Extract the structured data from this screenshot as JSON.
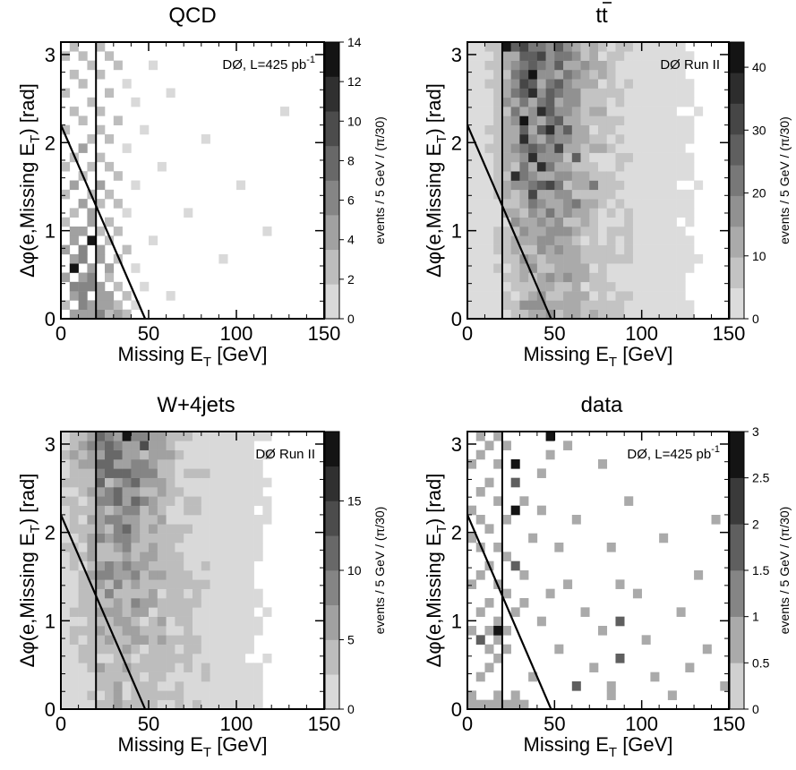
{
  "chart_data": [
    {
      "type": "heatmap",
      "title": "QCD",
      "annotation": "DØ, L=425 pb",
      "annotation_sup": "-1",
      "xlabel": "Missing E",
      "xlabel_sub": "T",
      "xlabel_unit": " [GeV]",
      "ylabel": "Δφ(e,Missing E",
      "ylabel_sub": "T",
      "ylabel_unit": ") [rad]",
      "colorbar_label": "events / 5 GeV / (π/30)",
      "xlim": [
        0,
        150
      ],
      "ylim": [
        0,
        3.1416
      ],
      "xticks": [
        0,
        50,
        100,
        150
      ],
      "yticks": [
        0,
        1,
        2,
        3
      ],
      "colorbar_ticks": [
        0,
        2,
        4,
        6,
        8,
        10,
        12,
        14
      ],
      "colorbar_max": 14,
      "colorbar_levels": 8,
      "cut_vertical_x": 20,
      "cut_line": [
        [
          0,
          2.2
        ],
        [
          48,
          0
        ]
      ],
      "bins_x": 30,
      "bins_y": 30,
      "cells": [
        [
          0,
          1,
          3
        ],
        [
          0,
          4,
          4
        ],
        [
          0,
          7,
          4
        ],
        [
          0,
          10,
          3
        ],
        [
          0,
          13,
          3
        ],
        [
          0,
          16,
          3
        ],
        [
          0,
          20,
          3
        ],
        [
          0,
          24,
          2
        ],
        [
          0,
          28,
          2
        ],
        [
          1,
          0,
          4
        ],
        [
          1,
          2,
          5
        ],
        [
          1,
          3,
          6
        ],
        [
          1,
          5,
          14
        ],
        [
          1,
          6,
          5
        ],
        [
          1,
          8,
          4
        ],
        [
          1,
          9,
          4
        ],
        [
          1,
          11,
          3
        ],
        [
          1,
          14,
          4
        ],
        [
          1,
          17,
          3
        ],
        [
          1,
          22,
          2
        ],
        [
          1,
          26,
          3
        ],
        [
          1,
          29,
          2
        ],
        [
          2,
          0,
          5
        ],
        [
          2,
          1,
          6
        ],
        [
          2,
          2,
          7
        ],
        [
          2,
          3,
          6
        ],
        [
          2,
          4,
          5
        ],
        [
          2,
          6,
          7
        ],
        [
          2,
          7,
          6
        ],
        [
          2,
          9,
          5
        ],
        [
          2,
          12,
          4
        ],
        [
          2,
          15,
          3
        ],
        [
          2,
          18,
          4
        ],
        [
          2,
          21,
          3
        ],
        [
          2,
          25,
          3
        ],
        [
          2,
          28,
          2
        ],
        [
          3,
          0,
          4
        ],
        [
          3,
          1,
          5
        ],
        [
          3,
          3,
          6
        ],
        [
          3,
          4,
          7
        ],
        [
          3,
          5,
          5
        ],
        [
          3,
          8,
          14
        ],
        [
          3,
          10,
          4
        ],
        [
          3,
          11,
          5
        ],
        [
          3,
          13,
          3
        ],
        [
          3,
          16,
          3
        ],
        [
          3,
          19,
          2
        ],
        [
          3,
          23,
          3
        ],
        [
          3,
          27,
          2
        ],
        [
          4,
          0,
          6
        ],
        [
          4,
          1,
          5
        ],
        [
          4,
          2,
          4
        ],
        [
          4,
          3,
          5
        ],
        [
          4,
          6,
          4
        ],
        [
          4,
          7,
          5
        ],
        [
          4,
          9,
          3
        ],
        [
          4,
          12,
          3
        ],
        [
          4,
          14,
          4
        ],
        [
          4,
          17,
          2
        ],
        [
          4,
          20,
          3
        ],
        [
          4,
          22,
          2
        ],
        [
          4,
          26,
          3
        ],
        [
          4,
          29,
          2
        ],
        [
          5,
          0,
          3
        ],
        [
          5,
          1,
          4
        ],
        [
          5,
          2,
          5
        ],
        [
          5,
          4,
          3
        ],
        [
          5,
          5,
          4
        ],
        [
          5,
          8,
          3
        ],
        [
          5,
          10,
          3
        ],
        [
          5,
          13,
          2
        ],
        [
          5,
          16,
          2
        ],
        [
          5,
          19,
          2
        ],
        [
          5,
          24,
          2
        ],
        [
          5,
          28,
          3
        ],
        [
          6,
          0,
          4
        ],
        [
          6,
          1,
          3
        ],
        [
          6,
          3,
          3
        ],
        [
          6,
          6,
          2
        ],
        [
          6,
          9,
          2
        ],
        [
          6,
          12,
          2
        ],
        [
          6,
          15,
          2
        ],
        [
          6,
          21,
          2
        ],
        [
          6,
          27,
          2
        ],
        [
          7,
          0,
          2
        ],
        [
          7,
          2,
          2
        ],
        [
          7,
          7,
          2
        ],
        [
          7,
          11,
          1
        ],
        [
          7,
          18,
          1
        ],
        [
          7,
          25,
          1
        ],
        [
          8,
          1,
          1
        ],
        [
          8,
          5,
          1
        ],
        [
          8,
          14,
          1
        ],
        [
          8,
          23,
          1
        ],
        [
          9,
          3,
          1
        ],
        [
          9,
          20,
          1
        ],
        [
          10,
          8,
          1
        ],
        [
          10,
          27,
          1
        ],
        [
          11,
          16,
          1
        ],
        [
          12,
          2,
          1
        ],
        [
          12,
          24,
          1
        ],
        [
          14,
          11,
          1
        ],
        [
          16,
          19,
          1
        ],
        [
          18,
          6,
          1
        ],
        [
          20,
          14,
          1
        ],
        [
          23,
          9,
          1
        ],
        [
          25,
          22,
          1
        ]
      ]
    },
    {
      "type": "heatmap",
      "title": "tt",
      "annotation": "DØ Run II",
      "annotation_sup": "",
      "xlabel": "Missing E",
      "xlabel_sub": "T",
      "xlabel_unit": " [GeV]",
      "ylabel": "Δφ(e,Missing E",
      "ylabel_sub": "T",
      "ylabel_unit": ") [rad]",
      "colorbar_label": "events / 5 GeV / (π/30)",
      "xlim": [
        0,
        150
      ],
      "ylim": [
        0,
        3.1416
      ],
      "xticks": [
        0,
        50,
        100,
        150
      ],
      "yticks": [
        0,
        1,
        2,
        3
      ],
      "colorbar_ticks": [
        0,
        10,
        20,
        30,
        40
      ],
      "colorbar_max": 44,
      "colorbar_levels": 9,
      "cut_vertical_x": 20,
      "cut_line": [
        [
          0,
          2.2
        ],
        [
          48,
          0
        ]
      ],
      "hotspots": [
        [
          4,
          29,
          42
        ],
        [
          7,
          26,
          41
        ],
        [
          7,
          24,
          39
        ],
        [
          6,
          21,
          40
        ],
        [
          8,
          22,
          38
        ],
        [
          9,
          20,
          37
        ],
        [
          6,
          19,
          36
        ],
        [
          7,
          17,
          38
        ],
        [
          8,
          16,
          39
        ],
        [
          5,
          15,
          35
        ],
        [
          9,
          14,
          34
        ],
        [
          7,
          13,
          31
        ],
        [
          10,
          18,
          30
        ],
        [
          11,
          20,
          29
        ],
        [
          6,
          25,
          33
        ],
        [
          8,
          28,
          30
        ],
        [
          12,
          17,
          27
        ],
        [
          12,
          12,
          24
        ],
        [
          9,
          11,
          22
        ],
        [
          14,
          14,
          21
        ],
        [
          11,
          9,
          18
        ]
      ]
    },
    {
      "type": "heatmap",
      "title": "W+4jets",
      "annotation": "DØ Run II",
      "annotation_sup": "",
      "xlabel": "Missing E",
      "xlabel_sub": "T",
      "xlabel_unit": " [GeV]",
      "ylabel": "Δφ(e,Missing E",
      "ylabel_sub": "T",
      "ylabel_unit": ") [rad]",
      "colorbar_label": "events / 5 GeV / (π/30)",
      "xlim": [
        0,
        150
      ],
      "ylim": [
        0,
        3.1416
      ],
      "xticks": [
        0,
        50,
        100,
        150
      ],
      "yticks": [
        0,
        1,
        2,
        3
      ],
      "colorbar_ticks": [
        0,
        5,
        10,
        15
      ],
      "colorbar_max": 20,
      "colorbar_levels": 8,
      "cut_vertical_x": 20,
      "cut_line": [
        [
          0,
          2.2
        ],
        [
          48,
          0
        ]
      ],
      "hotspots": [
        [
          7,
          29,
          19
        ],
        [
          5,
          28,
          12
        ],
        [
          9,
          28,
          13
        ],
        [
          6,
          27,
          11
        ],
        [
          8,
          26,
          10
        ],
        [
          4,
          25,
          9
        ],
        [
          7,
          24,
          10
        ],
        [
          10,
          25,
          9
        ],
        [
          5,
          23,
          8
        ],
        [
          9,
          22,
          9
        ]
      ]
    },
    {
      "type": "heatmap",
      "title": "data",
      "annotation": "DØ, L=425 pb",
      "annotation_sup": "-1",
      "xlabel": "Missing E",
      "xlabel_sub": "T",
      "xlabel_unit": " [GeV]",
      "ylabel": "Δφ(e,Missing E",
      "ylabel_sub": "T",
      "ylabel_unit": ") [rad]",
      "colorbar_label": "events / 5 GeV / (π/30)",
      "xlim": [
        0,
        150
      ],
      "ylim": [
        0,
        3.1416
      ],
      "xticks": [
        0,
        50,
        100,
        150
      ],
      "yticks": [
        0,
        1,
        2,
        3
      ],
      "colorbar_ticks": [
        0,
        0.5,
        1,
        1.5,
        2,
        2.5,
        3
      ],
      "colorbar_max": 3,
      "colorbar_levels": 6,
      "cut_vertical_x": 20,
      "cut_line": [
        [
          0,
          2.2
        ],
        [
          48,
          0
        ]
      ],
      "bins_x": 30,
      "bins_y": 30,
      "cells": [
        [
          0,
          0,
          1
        ],
        [
          1,
          0,
          1
        ],
        [
          2,
          0,
          1
        ],
        [
          3,
          0,
          1
        ],
        [
          4,
          0,
          1
        ],
        [
          5,
          0,
          1
        ],
        [
          6,
          0,
          1
        ],
        [
          0,
          1,
          1
        ],
        [
          3,
          1,
          1
        ],
        [
          5,
          1,
          1
        ],
        [
          1,
          3,
          1
        ],
        [
          2,
          4,
          1
        ],
        [
          3,
          5,
          1
        ],
        [
          2,
          6,
          1
        ],
        [
          4,
          6,
          1
        ],
        [
          1,
          7,
          2
        ],
        [
          3,
          7,
          1
        ],
        [
          0,
          8,
          1
        ],
        [
          2,
          8,
          1
        ],
        [
          4,
          8,
          1
        ],
        [
          3,
          9,
          1
        ],
        [
          1,
          10,
          1
        ],
        [
          5,
          10,
          1
        ],
        [
          2,
          11,
          1
        ],
        [
          4,
          12,
          1
        ],
        [
          0,
          13,
          1
        ],
        [
          3,
          13,
          1
        ],
        [
          1,
          14,
          1
        ],
        [
          2,
          15,
          1
        ],
        [
          4,
          16,
          1
        ],
        [
          1,
          17,
          1
        ],
        [
          3,
          17,
          1
        ],
        [
          0,
          18,
          1
        ],
        [
          2,
          19,
          1
        ],
        [
          1,
          20,
          1
        ],
        [
          4,
          20,
          1
        ],
        [
          0,
          21,
          1
        ],
        [
          3,
          22,
          1
        ],
        [
          1,
          23,
          1
        ],
        [
          2,
          24,
          1
        ],
        [
          0,
          26,
          1
        ],
        [
          3,
          26,
          1
        ],
        [
          1,
          27,
          1
        ],
        [
          2,
          28,
          1
        ],
        [
          4,
          28,
          1
        ],
        [
          1,
          29,
          1
        ],
        [
          3,
          29,
          1
        ],
        [
          5,
          26,
          3
        ],
        [
          5,
          24,
          2
        ],
        [
          5,
          21,
          3
        ],
        [
          3,
          8,
          3
        ],
        [
          5,
          15,
          2
        ],
        [
          6,
          11,
          1
        ],
        [
          7,
          18,
          1
        ],
        [
          8,
          21,
          1
        ],
        [
          8,
          25,
          1
        ],
        [
          9,
          27,
          1
        ],
        [
          9,
          29,
          3
        ],
        [
          7,
          3,
          1
        ],
        [
          6,
          14,
          1
        ],
        [
          6,
          22,
          1
        ],
        [
          8,
          9,
          1
        ],
        [
          9,
          12,
          1
        ],
        [
          10,
          17,
          1
        ],
        [
          10,
          6,
          1
        ],
        [
          11,
          28,
          1
        ],
        [
          11,
          13,
          1
        ],
        [
          12,
          2,
          2
        ],
        [
          12,
          20,
          1
        ],
        [
          13,
          10,
          1
        ],
        [
          14,
          4,
          1
        ],
        [
          15,
          8,
          1
        ],
        [
          15,
          26,
          1
        ],
        [
          16,
          2,
          1
        ],
        [
          16,
          17,
          1
        ],
        [
          17,
          5,
          2
        ],
        [
          17,
          9,
          2
        ],
        [
          17,
          13,
          1
        ],
        [
          16,
          1,
          1
        ],
        [
          18,
          22,
          1
        ],
        [
          19,
          12,
          1
        ],
        [
          20,
          7,
          1
        ],
        [
          21,
          3,
          1
        ],
        [
          22,
          18,
          1
        ],
        [
          23,
          1,
          1
        ],
        [
          24,
          10,
          1
        ],
        [
          25,
          4,
          1
        ],
        [
          26,
          14,
          1
        ],
        [
          27,
          6,
          1
        ],
        [
          28,
          20,
          1
        ],
        [
          29,
          2,
          1
        ]
      ]
    }
  ]
}
